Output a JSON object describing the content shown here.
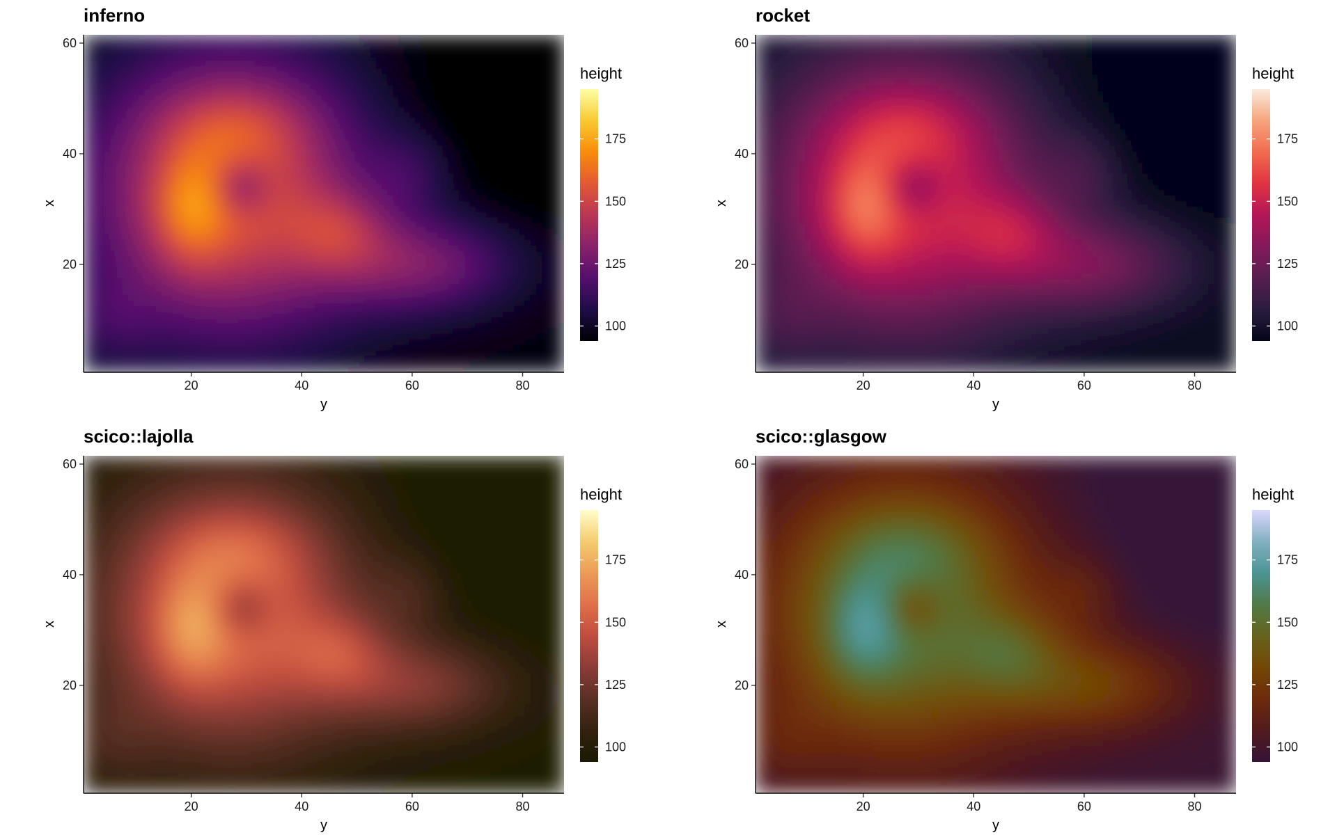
{
  "chart_data": [
    {
      "type": "heatmap",
      "title": "inferno",
      "xlabel": "y",
      "ylabel": "x",
      "xlim": [
        1,
        87
      ],
      "ylim": [
        1,
        61
      ],
      "x_ticks": [
        20,
        40,
        60,
        80
      ],
      "y_ticks": [
        20,
        40,
        60
      ],
      "legend_title": "height",
      "legend_ticks": [
        100,
        125,
        150,
        175
      ],
      "value_range": [
        94,
        195
      ],
      "colors": [
        "#000004",
        "#1f0c48",
        "#550f6d",
        "#88226a",
        "#ba3655",
        "#e35933",
        "#f98c0a",
        "#f9c932",
        "#fcffa4"
      ]
    },
    {
      "type": "heatmap",
      "title": "rocket",
      "xlabel": "y",
      "ylabel": "x",
      "xlim": [
        1,
        87
      ],
      "ylim": [
        1,
        61
      ],
      "x_ticks": [
        20,
        40,
        60,
        80
      ],
      "y_ticks": [
        20,
        40,
        60
      ],
      "legend_title": "height",
      "legend_ticks": [
        100,
        125,
        150,
        175
      ],
      "value_range": [
        94,
        195
      ],
      "colors": [
        "#03051a",
        "#2b1c3f",
        "#571e4f",
        "#84195a",
        "#b41658",
        "#e13342",
        "#f26c4f",
        "#f6a47c",
        "#faebdd"
      ]
    },
    {
      "type": "heatmap",
      "title": "scico::lajolla",
      "xlabel": "y",
      "ylabel": "x",
      "xlim": [
        1,
        87
      ],
      "ylim": [
        1,
        61
      ],
      "x_ticks": [
        20,
        40,
        60,
        80
      ],
      "y_ticks": [
        20,
        40,
        60
      ],
      "legend_title": "height",
      "legend_ticks": [
        100,
        125,
        150,
        175
      ],
      "value_range": [
        94,
        195
      ],
      "colors": [
        "#1a1a01",
        "#33220f",
        "#5a2f24",
        "#8b3c36",
        "#c04d3f",
        "#e0704a",
        "#eb9b56",
        "#f4cc6f",
        "#fffecb"
      ]
    },
    {
      "type": "heatmap",
      "title": "scico::glasgow",
      "xlabel": "y",
      "ylabel": "x",
      "xlim": [
        1,
        87
      ],
      "ylim": [
        1,
        61
      ],
      "x_ticks": [
        20,
        40,
        60,
        80
      ],
      "y_ticks": [
        20,
        40,
        60
      ],
      "legend_title": "height",
      "legend_ticks": [
        100,
        125,
        150,
        175
      ],
      "value_range": [
        94,
        195
      ],
      "colors": [
        "#361338",
        "#521a1c",
        "#6d2a0c",
        "#744804",
        "#66621d",
        "#517a47",
        "#4b9494",
        "#83b0c1",
        "#dbd8ff"
      ]
    }
  ]
}
